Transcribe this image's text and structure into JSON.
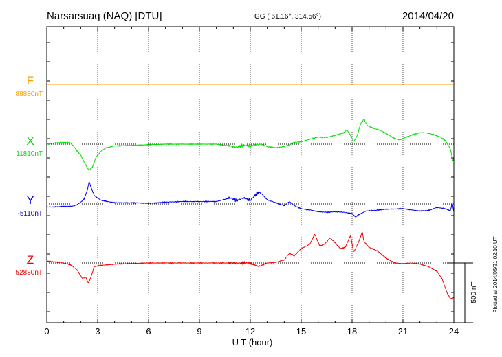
{
  "chart_data": {
    "type": "line",
    "title": "Narsarsuaq (NAQ)  [DTU]",
    "subtitle": "GG ( 61.16°, 314.56°)",
    "date": "2014/04/20",
    "xlabel": "U T (hour)",
    "xlim": [
      0,
      24
    ],
    "xticks": [
      "0",
      "3",
      "6",
      "9",
      "12",
      "15",
      "18",
      "21",
      "24"
    ],
    "grid": true,
    "scale_bar_label": "500 nT",
    "scale_bar_nT": 500,
    "plotted_note": "Plotted at 2014/05/21 02:10 UT",
    "series": [
      {
        "name": "F",
        "baseline_label": "88880nT",
        "color": "#f5a000",
        "baseline_nT": 88880,
        "points": [
          [
            0,
            0
          ],
          [
            24,
            0
          ]
        ]
      },
      {
        "name": "X",
        "baseline_label": "11810nT",
        "color": "#00dd00",
        "baseline_nT": 11810,
        "points": [
          [
            0,
            0
          ],
          [
            0.5,
            10
          ],
          [
            1.0,
            15
          ],
          [
            1.4,
            10
          ],
          [
            1.6,
            -20
          ],
          [
            1.8,
            -60
          ],
          [
            2.0,
            -90
          ],
          [
            2.2,
            -150
          ],
          [
            2.4,
            -200
          ],
          [
            2.5,
            -220
          ],
          [
            2.7,
            -190
          ],
          [
            2.9,
            -110
          ],
          [
            3.2,
            -60
          ],
          [
            3.5,
            -30
          ],
          [
            4,
            -15
          ],
          [
            5,
            -10
          ],
          [
            6,
            -5
          ],
          [
            7,
            0
          ],
          [
            8,
            0
          ],
          [
            9,
            0
          ],
          [
            10,
            0
          ],
          [
            10.8,
            -15
          ],
          [
            11.2,
            -25
          ],
          [
            11.6,
            -10
          ],
          [
            12,
            -15
          ],
          [
            12.3,
            -5
          ],
          [
            12.6,
            0
          ],
          [
            13,
            -20
          ],
          [
            13.5,
            -30
          ],
          [
            14.0,
            -20
          ],
          [
            14.3,
            -5
          ],
          [
            14.6,
            15
          ],
          [
            15,
            20
          ],
          [
            15.5,
            40
          ],
          [
            16,
            60
          ],
          [
            16.5,
            55
          ],
          [
            17,
            75
          ],
          [
            17.5,
            95
          ],
          [
            17.7,
            120
          ],
          [
            17.9,
            75
          ],
          [
            18.1,
            20
          ],
          [
            18.3,
            70
          ],
          [
            18.5,
            170
          ],
          [
            18.7,
            210
          ],
          [
            18.9,
            155
          ],
          [
            19.3,
            130
          ],
          [
            19.6,
            120
          ],
          [
            20.0,
            90
          ],
          [
            20.4,
            55
          ],
          [
            20.8,
            35
          ],
          [
            21.2,
            60
          ],
          [
            21.6,
            80
          ],
          [
            22,
            95
          ],
          [
            22.4,
            95
          ],
          [
            22.8,
            80
          ],
          [
            23.2,
            60
          ],
          [
            23.5,
            30
          ],
          [
            23.8,
            -40
          ],
          [
            23.95,
            -150
          ],
          [
            24,
            -110
          ]
        ]
      },
      {
        "name": "Y",
        "baseline_label": "-5110nT",
        "color": "#0000ee",
        "baseline_nT": -5110,
        "points": [
          [
            0,
            -25
          ],
          [
            0.5,
            -25
          ],
          [
            1.0,
            -20
          ],
          [
            1.5,
            -20
          ],
          [
            1.8,
            -5
          ],
          [
            2.0,
            15
          ],
          [
            2.2,
            40
          ],
          [
            2.4,
            120
          ],
          [
            2.5,
            190
          ],
          [
            2.6,
            140
          ],
          [
            2.8,
            70
          ],
          [
            3.2,
            30
          ],
          [
            4,
            10
          ],
          [
            5,
            10
          ],
          [
            6,
            5
          ],
          [
            7,
            15
          ],
          [
            8,
            20
          ],
          [
            9,
            20
          ],
          [
            10,
            20
          ],
          [
            10.8,
            50
          ],
          [
            11.2,
            30
          ],
          [
            11.6,
            50
          ],
          [
            12,
            30
          ],
          [
            12.3,
            75
          ],
          [
            12.5,
            100
          ],
          [
            12.7,
            80
          ],
          [
            13,
            35
          ],
          [
            13.5,
            10
          ],
          [
            14,
            -15
          ],
          [
            14.3,
            20
          ],
          [
            14.6,
            -15
          ],
          [
            15,
            -40
          ],
          [
            15.5,
            -50
          ],
          [
            16,
            -65
          ],
          [
            16.5,
            -70
          ],
          [
            17,
            -65
          ],
          [
            17.5,
            -70
          ],
          [
            18,
            -80
          ],
          [
            18.2,
            -110
          ],
          [
            18.4,
            -90
          ],
          [
            18.8,
            -60
          ],
          [
            19.3,
            -55
          ],
          [
            20,
            -45
          ],
          [
            21,
            -40
          ],
          [
            21.5,
            -50
          ],
          [
            22,
            -60
          ],
          [
            22.5,
            -55
          ],
          [
            23,
            -30
          ],
          [
            23.5,
            -40
          ],
          [
            23.8,
            -60
          ],
          [
            23.9,
            15
          ],
          [
            24,
            -70
          ]
        ]
      },
      {
        "name": "Z",
        "baseline_label": "52880nT",
        "color": "#ee0000",
        "baseline_nT": 52880,
        "points": [
          [
            0,
            15
          ],
          [
            0.8,
            5
          ],
          [
            1.4,
            -15
          ],
          [
            1.8,
            -60
          ],
          [
            2.1,
            -130
          ],
          [
            2.3,
            -120
          ],
          [
            2.45,
            -170
          ],
          [
            2.6,
            -120
          ],
          [
            2.8,
            -30
          ],
          [
            3.2,
            -20
          ],
          [
            4,
            -10
          ],
          [
            5,
            -5
          ],
          [
            6,
            0
          ],
          [
            7,
            0
          ],
          [
            8,
            0
          ],
          [
            9,
            0
          ],
          [
            10,
            0
          ],
          [
            11,
            0
          ],
          [
            12,
            0
          ],
          [
            12.5,
            -30
          ],
          [
            13,
            0
          ],
          [
            13.5,
            5
          ],
          [
            14,
            25
          ],
          [
            14.3,
            80
          ],
          [
            14.6,
            60
          ],
          [
            15,
            120
          ],
          [
            15.5,
            155
          ],
          [
            15.8,
            240
          ],
          [
            16.1,
            140
          ],
          [
            16.4,
            160
          ],
          [
            16.7,
            210
          ],
          [
            17,
            170
          ],
          [
            17.3,
            120
          ],
          [
            17.6,
            130
          ],
          [
            17.9,
            230
          ],
          [
            18.1,
            90
          ],
          [
            18.4,
            180
          ],
          [
            18.6,
            260
          ],
          [
            18.7,
            180
          ],
          [
            19,
            130
          ],
          [
            19.5,
            100
          ],
          [
            20,
            40
          ],
          [
            20.5,
            0
          ],
          [
            21,
            -5
          ],
          [
            21.5,
            0
          ],
          [
            22,
            -10
          ],
          [
            22.5,
            -30
          ],
          [
            23,
            -70
          ],
          [
            23.3,
            -130
          ],
          [
            23.6,
            -250
          ],
          [
            23.8,
            -300
          ],
          [
            24,
            -290
          ]
        ]
      }
    ]
  }
}
